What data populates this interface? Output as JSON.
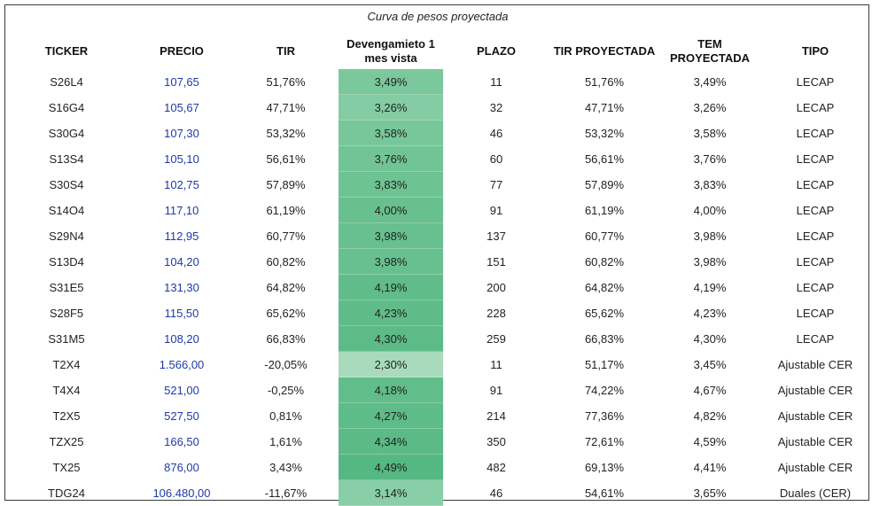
{
  "title": "Curva de pesos proyectada",
  "headers": {
    "ticker": "TICKER",
    "precio": "PRECIO",
    "tir": "TIR",
    "devengamiento_line1": "Devengamieto 1",
    "devengamiento_line2": "mes vista",
    "plazo": "PLAZO",
    "tir_proyectada": "TIR PROYECTADA",
    "tem_proyectada": "TEM PROYECTADA",
    "tipo": "TIPO"
  },
  "colors": {
    "precio_text": "#1f3aa8",
    "devengamiento_min": "#a8dbbc",
    "devengamiento_max": "#55b882"
  },
  "rows": [
    {
      "ticker": "S26L4",
      "precio": "107,65",
      "tir": "51,76%",
      "devengamiento": "3,49%",
      "plazo": "11",
      "tir_proyectada": "51,76%",
      "tem_proyectada": "3,49%",
      "tipo": "LECAP"
    },
    {
      "ticker": "S16G4",
      "precio": "105,67",
      "tir": "47,71%",
      "devengamiento": "3,26%",
      "plazo": "32",
      "tir_proyectada": "47,71%",
      "tem_proyectada": "3,26%",
      "tipo": "LECAP"
    },
    {
      "ticker": "S30G4",
      "precio": "107,30",
      "tir": "53,32%",
      "devengamiento": "3,58%",
      "plazo": "46",
      "tir_proyectada": "53,32%",
      "tem_proyectada": "3,58%",
      "tipo": "LECAP"
    },
    {
      "ticker": "S13S4",
      "precio": "105,10",
      "tir": "56,61%",
      "devengamiento": "3,76%",
      "plazo": "60",
      "tir_proyectada": "56,61%",
      "tem_proyectada": "3,76%",
      "tipo": "LECAP"
    },
    {
      "ticker": "S30S4",
      "precio": "102,75",
      "tir": "57,89%",
      "devengamiento": "3,83%",
      "plazo": "77",
      "tir_proyectada": "57,89%",
      "tem_proyectada": "3,83%",
      "tipo": "LECAP"
    },
    {
      "ticker": "S14O4",
      "precio": "117,10",
      "tir": "61,19%",
      "devengamiento": "4,00%",
      "plazo": "91",
      "tir_proyectada": "61,19%",
      "tem_proyectada": "4,00%",
      "tipo": "LECAP"
    },
    {
      "ticker": "S29N4",
      "precio": "112,95",
      "tir": "60,77%",
      "devengamiento": "3,98%",
      "plazo": "137",
      "tir_proyectada": "60,77%",
      "tem_proyectada": "3,98%",
      "tipo": "LECAP"
    },
    {
      "ticker": "S13D4",
      "precio": "104,20",
      "tir": "60,82%",
      "devengamiento": "3,98%",
      "plazo": "151",
      "tir_proyectada": "60,82%",
      "tem_proyectada": "3,98%",
      "tipo": "LECAP"
    },
    {
      "ticker": "S31E5",
      "precio": "131,30",
      "tir": "64,82%",
      "devengamiento": "4,19%",
      "plazo": "200",
      "tir_proyectada": "64,82%",
      "tem_proyectada": "4,19%",
      "tipo": "LECAP"
    },
    {
      "ticker": "S28F5",
      "precio": "115,50",
      "tir": "65,62%",
      "devengamiento": "4,23%",
      "plazo": "228",
      "tir_proyectada": "65,62%",
      "tem_proyectada": "4,23%",
      "tipo": "LECAP"
    },
    {
      "ticker": "S31M5",
      "precio": "108,20",
      "tir": "66,83%",
      "devengamiento": "4,30%",
      "plazo": "259",
      "tir_proyectada": "66,83%",
      "tem_proyectada": "4,30%",
      "tipo": "LECAP"
    },
    {
      "ticker": "T2X4",
      "precio": "1.566,00",
      "tir": "-20,05%",
      "devengamiento": "2,30%",
      "plazo": "11",
      "tir_proyectada": "51,17%",
      "tem_proyectada": "3,45%",
      "tipo": "Ajustable CER"
    },
    {
      "ticker": "T4X4",
      "precio": "521,00",
      "tir": "-0,25%",
      "devengamiento": "4,18%",
      "plazo": "91",
      "tir_proyectada": "74,22%",
      "tem_proyectada": "4,67%",
      "tipo": "Ajustable CER"
    },
    {
      "ticker": "T2X5",
      "precio": "527,50",
      "tir": "0,81%",
      "devengamiento": "4,27%",
      "plazo": "214",
      "tir_proyectada": "77,36%",
      "tem_proyectada": "4,82%",
      "tipo": "Ajustable CER"
    },
    {
      "ticker": "TZX25",
      "precio": "166,50",
      "tir": "1,61%",
      "devengamiento": "4,34%",
      "plazo": "350",
      "tir_proyectada": "72,61%",
      "tem_proyectada": "4,59%",
      "tipo": "Ajustable CER"
    },
    {
      "ticker": "TX25",
      "precio": "876,00",
      "tir": "3,43%",
      "devengamiento": "4,49%",
      "plazo": "482",
      "tir_proyectada": "69,13%",
      "tem_proyectada": "4,41%",
      "tipo": "Ajustable CER"
    },
    {
      "ticker": "TDG24",
      "precio": "106.480,00",
      "tir": "-11,67%",
      "devengamiento": "3,14%",
      "plazo": "46",
      "tir_proyectada": "54,61%",
      "tem_proyectada": "3,65%",
      "tipo": "Duales (CER)"
    }
  ]
}
